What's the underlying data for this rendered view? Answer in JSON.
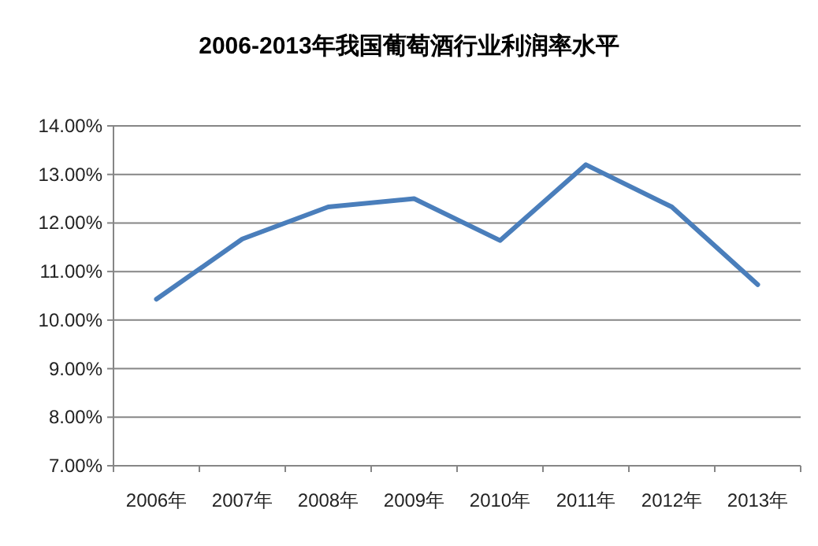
{
  "chart_data": {
    "type": "line",
    "title": "2006-2013年我国葡萄酒行业利润率水平",
    "categories": [
      "2006年",
      "2007年",
      "2008年",
      "2009年",
      "2010年",
      "2011年",
      "2012年",
      "2013年"
    ],
    "series": [
      {
        "color": "#4a7ebb",
        "values": [
          10.43,
          11.67,
          12.33,
          12.5,
          11.64,
          13.2,
          12.33,
          10.73
        ]
      }
    ],
    "ylim": [
      7,
      14
    ],
    "yticks": [
      {
        "value": 7,
        "label": "7.00%"
      },
      {
        "value": 8,
        "label": "8.00%"
      },
      {
        "value": 9,
        "label": "9.00%"
      },
      {
        "value": 10,
        "label": "10.00%"
      },
      {
        "value": 11,
        "label": "11.00%"
      },
      {
        "value": 12,
        "label": "12.00%"
      },
      {
        "value": 13,
        "label": "13.00%"
      },
      {
        "value": 14,
        "label": "14.00%"
      }
    ],
    "grid": "y",
    "marker": "none",
    "line_style": "solid"
  }
}
